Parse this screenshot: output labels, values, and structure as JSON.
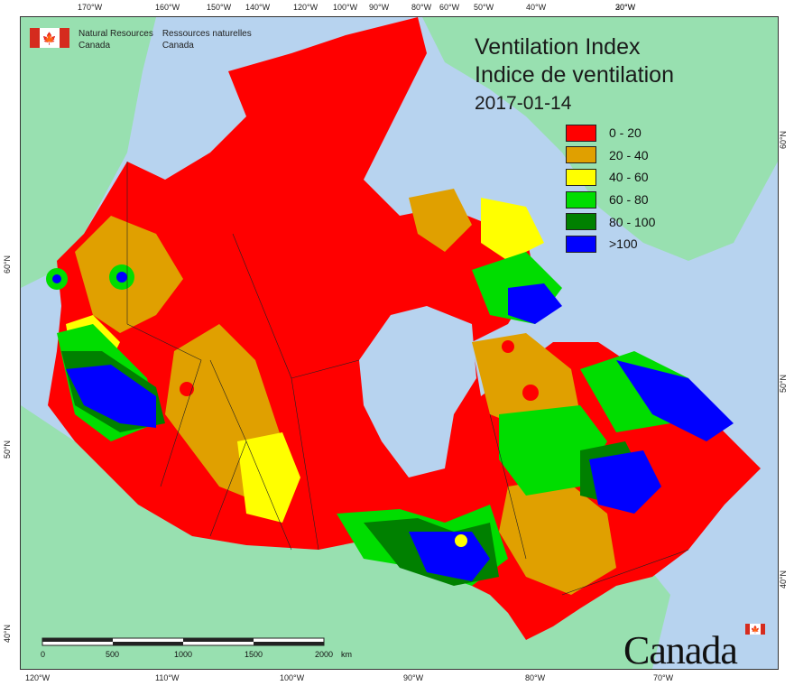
{
  "title": {
    "line1": "Ventilation Index",
    "line2": "Indice de ventilation",
    "date": "2017-01-14"
  },
  "agency": {
    "en_line1": "Natural Resources",
    "en_line2": "Canada",
    "fr_line1": "Ressources naturelles",
    "fr_line2": "Canada"
  },
  "wordmark": "Canada",
  "legend": [
    {
      "label": "0 - 20",
      "color": "#ff0000"
    },
    {
      "label": "20 - 40",
      "color": "#e0a000"
    },
    {
      "label": "40 - 60",
      "color": "#ffff00"
    },
    {
      "label": "60 - 80",
      "color": "#00dd00"
    },
    {
      "label": "80 - 100",
      "color": "#008000"
    },
    {
      "label": ">100",
      "color": "#0000ff"
    }
  ],
  "graticule": {
    "top": [
      "170°W",
      "160°W",
      "150°W",
      "140°W",
      "120°W",
      "100°W",
      "90°W",
      "80°W",
      "60°W",
      "50°W",
      "40°W",
      "30°W",
      "20°W"
    ],
    "bottom": [
      "120°W",
      "110°W",
      "100°W",
      "90°W",
      "80°W",
      "70°W"
    ],
    "left": [
      "60°N",
      "50°N",
      "40°N"
    ],
    "right": [
      "60°N",
      "50°N",
      "40°N"
    ]
  },
  "scale_bar": {
    "labels": [
      "0",
      "500",
      "1000",
      "1500",
      "2000"
    ],
    "unit": "km"
  },
  "colors": {
    "water": "#b7d3ef",
    "foreign_land": "#98e0b0",
    "map_border": "#333333",
    "flag_red": "#d52b1e"
  }
}
